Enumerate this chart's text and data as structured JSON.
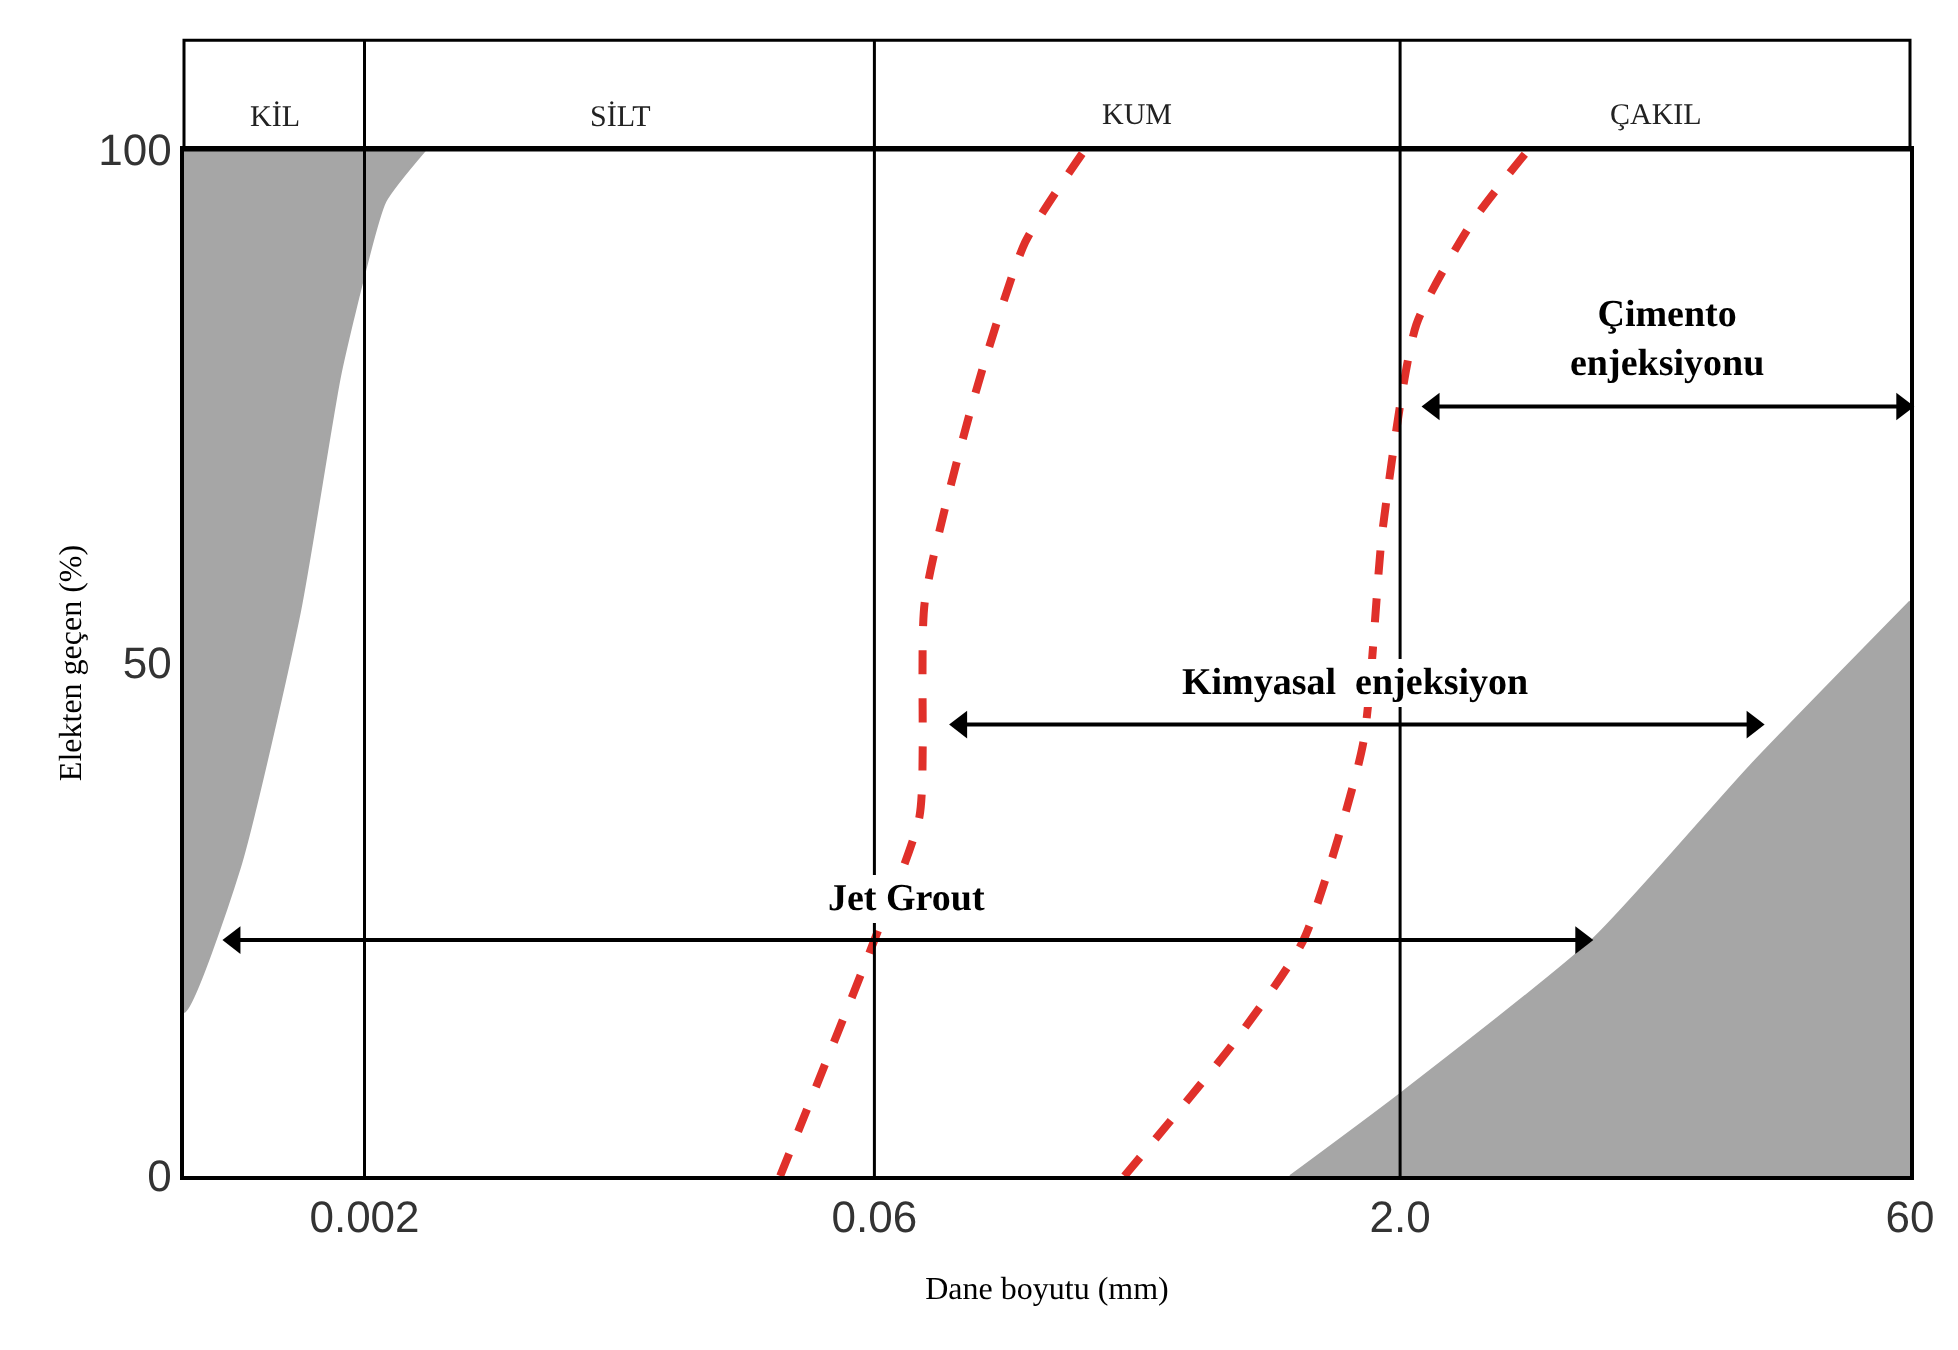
{
  "chart_data": {
    "type": "line",
    "xlabel": "Dane boyutu (mm)",
    "ylabel": "Elekten geçen (%)",
    "log": "x",
    "xlim": [
      0.0006,
      60
    ],
    "xticks": [
      0.002,
      0.06,
      {
        "value": 2,
        "label": "2.0"
      },
      60
    ],
    "ylim": [
      0,
      100
    ],
    "yticks": [
      0,
      50,
      100
    ],
    "ref_lines": [
      {
        "axis": "x",
        "value": 0.002,
        "color": "#000000"
      },
      {
        "axis": "x",
        "value": 0.06,
        "color": "#000000"
      },
      {
        "axis": "x",
        "value": 2,
        "color": "#000000"
      }
    ],
    "series": [
      {
        "type": "area",
        "color": "#a6a6a6",
        "x": [
          0.0006,
          0.0006,
          0.00087,
          0.0013,
          0.0017,
          0.002,
          0.0023,
          0.003
        ],
        "values": [
          100,
          16,
          30,
          55,
          78,
          88,
          95,
          100
        ]
      },
      {
        "type": "area",
        "color": "#a6a6a6",
        "x": [
          0.96,
          2,
          7.2,
          20.7,
          60
        ],
        "values": [
          0,
          8,
          23,
          40,
          56
        ]
      },
      {
        "color": "#e0302a",
        "line_style": "dashed",
        "x": [
          0.032,
          0.06,
          0.081,
          0.084,
          0.117,
          0.164,
          0.244
        ],
        "values": [
          0,
          23,
          35,
          56,
          76,
          91,
          100
        ]
      },
      {
        "color": "#e0302a",
        "line_style": "dashed",
        "x": [
          0.318,
          0.66,
          1.05,
          1.56,
          1.78,
          2.23,
          3.24,
          4.7
        ],
        "values": [
          0,
          13,
          23,
          42,
          63,
          83,
          93,
          100
        ]
      },
      {
        "color": "#000000",
        "marker": "triangle",
        "x": [
          0.00084,
          6.7
        ],
        "values": [
          23,
          23
        ]
      },
      {
        "color": "#000000",
        "marker": "triangle",
        "x": [
          0.107,
          21
        ],
        "values": [
          44,
          44
        ]
      },
      {
        "color": "#000000",
        "marker": "triangle",
        "x": [
          2.5,
          57
        ],
        "values": [
          75,
          75
        ]
      }
    ],
    "annotations": [
      "KİL",
      "SİLT",
      "KUM",
      "ÇAKIL",
      "Jet Grout",
      "Kimyasal  enjeksiyon",
      "Çimento\nenjeksiyonu"
    ]
  }
}
